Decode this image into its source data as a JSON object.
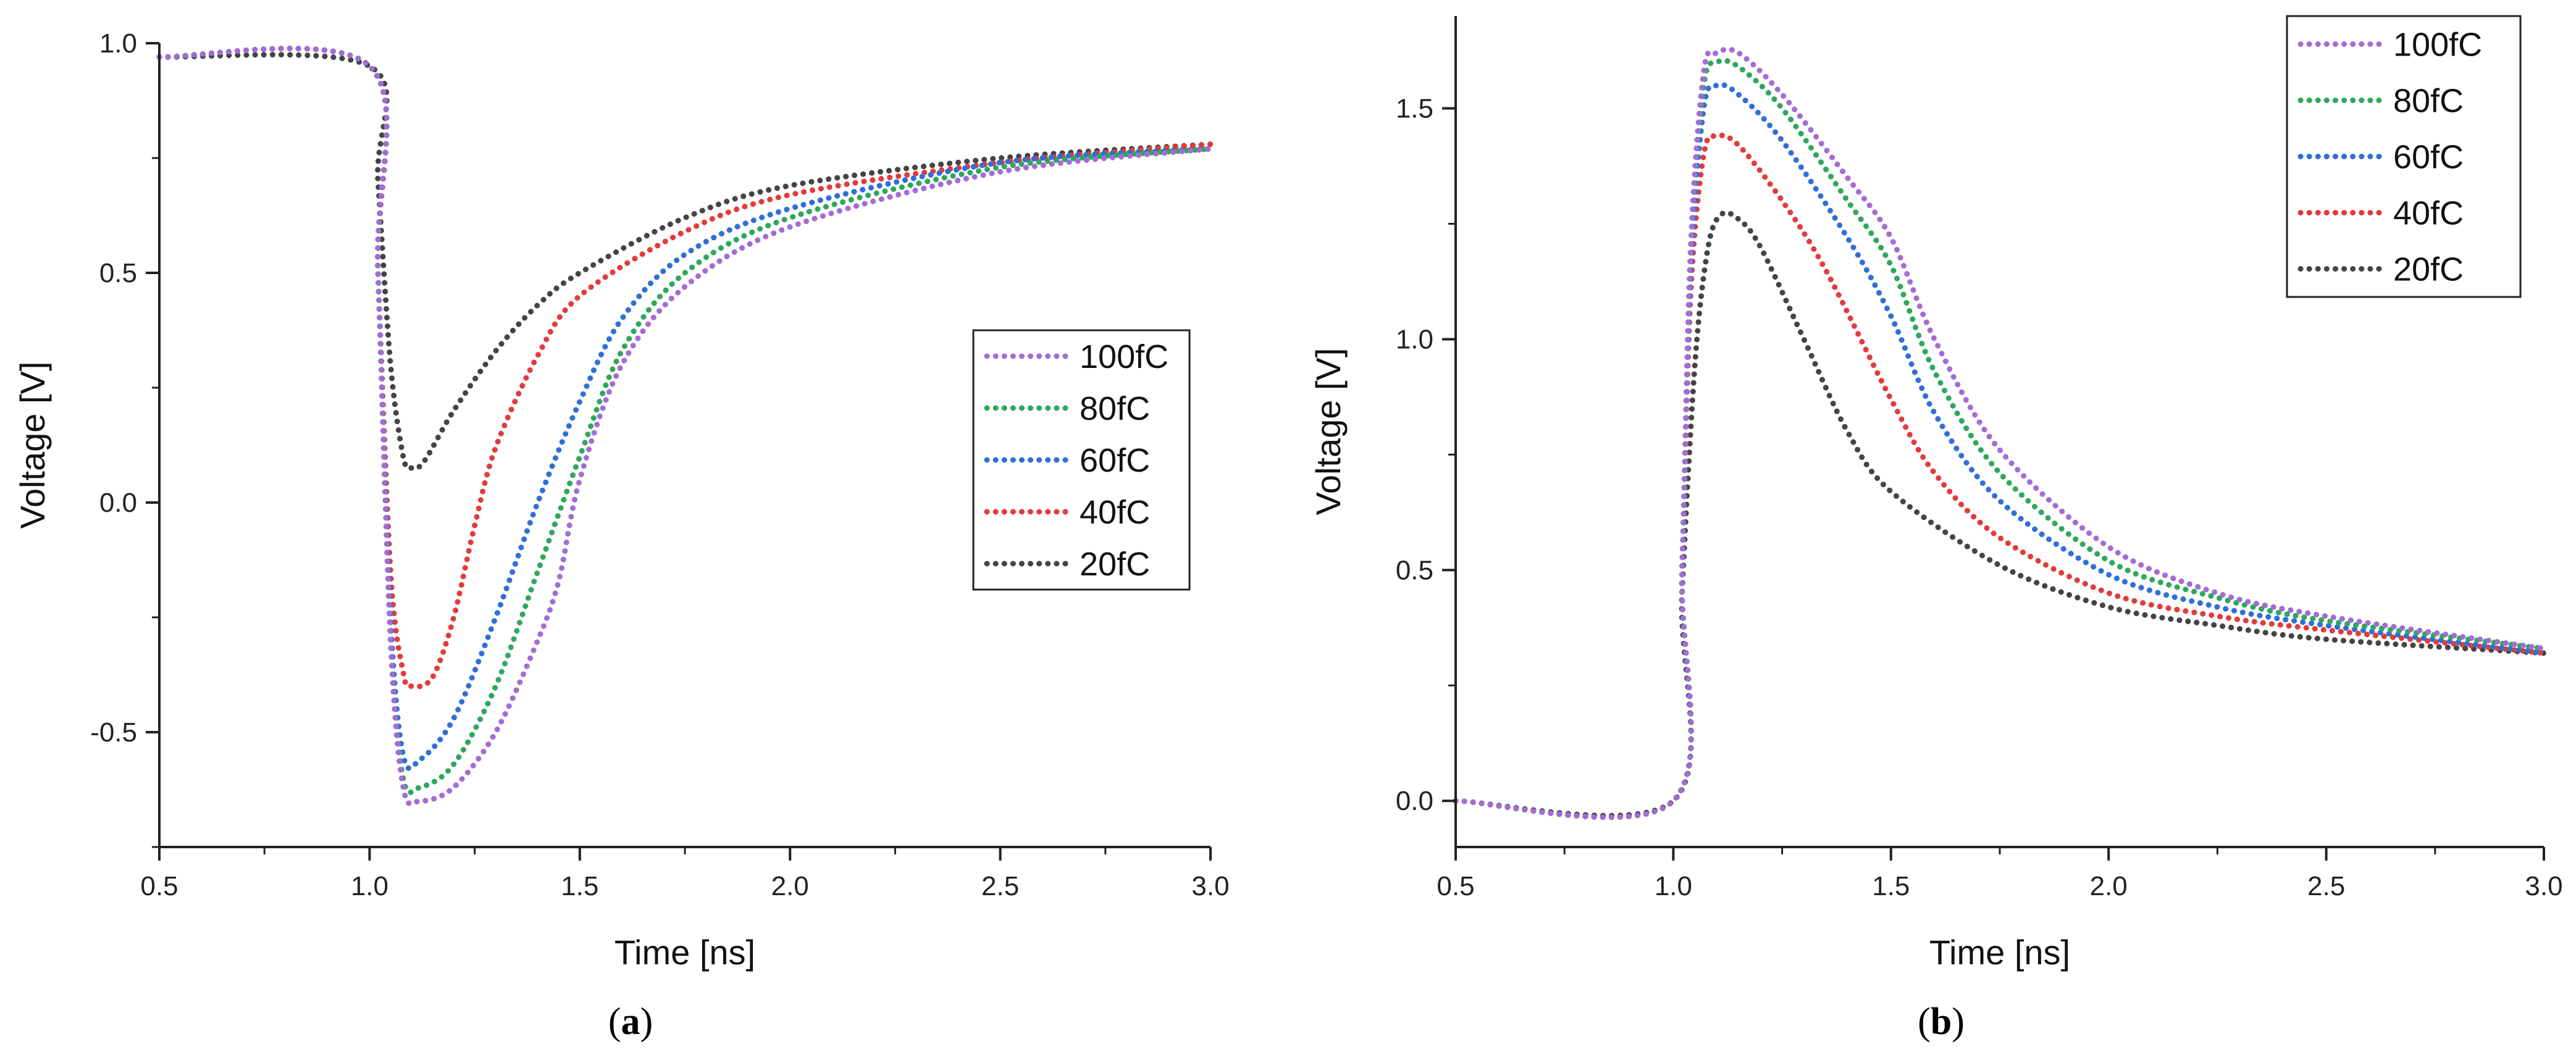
{
  "chart_data": [
    {
      "type": "line",
      "panel_label": "a",
      "xlabel": "Time [ns]",
      "ylabel": "Voltage [V]",
      "xlim": [
        0.5,
        3.0
      ],
      "ylim": [
        -0.75,
        1.0
      ],
      "xticks": [
        0.5,
        1.0,
        1.5,
        2.0,
        2.5,
        3.0
      ],
      "yticks": [
        -0.5,
        0.0,
        0.5,
        1.0
      ],
      "xtick_labels": [
        "0.5",
        "1.0",
        "1.5",
        "2.0",
        "2.5",
        "3.0"
      ],
      "ytick_labels": [
        "-0.5",
        "0.0",
        "0.5",
        "1.0"
      ],
      "grid": false,
      "legend_position": "center-right",
      "series": [
        {
          "name": "100fC",
          "color": "#a46bd6",
          "x": [
            0.5,
            1.0,
            1.02,
            1.05,
            1.08,
            1.12,
            1.2,
            1.3,
            1.4,
            1.45,
            1.5,
            1.6,
            1.75,
            2.0,
            2.5,
            3.0
          ],
          "y": [
            0.97,
            0.95,
            0.5,
            -0.3,
            -0.62,
            -0.65,
            -0.62,
            -0.5,
            -0.3,
            -0.17,
            0.05,
            0.3,
            0.47,
            0.6,
            0.72,
            0.77
          ]
        },
        {
          "name": "80fC",
          "color": "#2ea85a",
          "x": [
            0.5,
            1.0,
            1.02,
            1.05,
            1.08,
            1.12,
            1.2,
            1.3,
            1.4,
            1.5,
            1.6,
            1.75,
            2.0,
            2.5,
            3.0
          ],
          "y": [
            0.97,
            0.95,
            0.5,
            -0.3,
            -0.6,
            -0.62,
            -0.57,
            -0.4,
            -0.15,
            0.1,
            0.33,
            0.5,
            0.62,
            0.73,
            0.77
          ]
        },
        {
          "name": "60fC",
          "color": "#2f6fd8",
          "x": [
            0.5,
            1.0,
            1.02,
            1.05,
            1.08,
            1.12,
            1.2,
            1.3,
            1.4,
            1.5,
            1.6,
            1.75,
            2.0,
            2.5,
            3.0
          ],
          "y": [
            0.97,
            0.95,
            0.5,
            -0.25,
            -0.55,
            -0.56,
            -0.47,
            -0.25,
            0.0,
            0.22,
            0.4,
            0.54,
            0.64,
            0.74,
            0.77
          ]
        },
        {
          "name": "40fC",
          "color": "#e23b3b",
          "x": [
            0.5,
            1.0,
            1.02,
            1.05,
            1.08,
            1.1,
            1.15,
            1.2,
            1.25,
            1.3,
            1.4,
            1.5,
            1.75,
            2.0,
            2.5,
            3.0
          ],
          "y": [
            0.97,
            0.95,
            0.5,
            -0.15,
            -0.37,
            -0.4,
            -0.38,
            -0.25,
            -0.05,
            0.12,
            0.32,
            0.45,
            0.59,
            0.67,
            0.74,
            0.78
          ]
        },
        {
          "name": "20fC",
          "color": "#444444",
          "x": [
            0.5,
            1.0,
            1.02,
            1.05,
            1.08,
            1.1,
            1.13,
            1.2,
            1.3,
            1.4,
            1.5,
            1.75,
            2.0,
            2.5,
            3.0
          ],
          "y": [
            0.97,
            0.95,
            0.7,
            0.3,
            0.1,
            0.075,
            0.09,
            0.2,
            0.33,
            0.43,
            0.5,
            0.62,
            0.69,
            0.75,
            0.78
          ]
        }
      ]
    },
    {
      "type": "line",
      "panel_label": "b",
      "xlabel": "Time [ns]",
      "ylabel": "Voltage [V]",
      "xlim": [
        0.5,
        3.0
      ],
      "ylim": [
        -0.1,
        1.7
      ],
      "xticks": [
        0.5,
        1.0,
        1.5,
        2.0,
        2.5,
        3.0
      ],
      "yticks": [
        0.0,
        0.5,
        1.0,
        1.5
      ],
      "xtick_labels": [
        "0.5",
        "1.0",
        "1.5",
        "2.0",
        "2.5",
        "3.0"
      ],
      "ytick_labels": [
        "0.0",
        "0.5",
        "1.0",
        "1.5"
      ],
      "grid": false,
      "legend_position": "top-right",
      "series": [
        {
          "name": "100fC",
          "color": "#a46bd6",
          "x": [
            0.5,
            1.0,
            1.02,
            1.04,
            1.07,
            1.1,
            1.15,
            1.25,
            1.4,
            1.5,
            1.6,
            1.75,
            2.0,
            2.25,
            2.5,
            3.0
          ],
          "y": [
            0.0,
            0.0,
            0.5,
            1.2,
            1.58,
            1.62,
            1.62,
            1.53,
            1.35,
            1.22,
            1.0,
            0.76,
            0.55,
            0.45,
            0.4,
            0.33
          ]
        },
        {
          "name": "80fC",
          "color": "#2ea85a",
          "x": [
            0.5,
            1.0,
            1.02,
            1.04,
            1.07,
            1.1,
            1.15,
            1.25,
            1.4,
            1.5,
            1.6,
            1.75,
            2.0,
            2.25,
            2.5,
            3.0
          ],
          "y": [
            0.0,
            0.0,
            0.5,
            1.2,
            1.55,
            1.6,
            1.59,
            1.5,
            1.3,
            1.16,
            0.93,
            0.71,
            0.52,
            0.44,
            0.39,
            0.33
          ]
        },
        {
          "name": "60fC",
          "color": "#2f6fd8",
          "x": [
            0.5,
            1.0,
            1.02,
            1.04,
            1.07,
            1.1,
            1.15,
            1.25,
            1.4,
            1.5,
            1.6,
            1.75,
            2.0,
            2.25,
            2.5,
            3.0
          ],
          "y": [
            0.0,
            0.0,
            0.5,
            1.15,
            1.5,
            1.55,
            1.53,
            1.43,
            1.22,
            1.05,
            0.84,
            0.65,
            0.49,
            0.42,
            0.38,
            0.32
          ]
        },
        {
          "name": "40fC",
          "color": "#e23b3b",
          "x": [
            0.5,
            1.0,
            1.02,
            1.04,
            1.07,
            1.1,
            1.15,
            1.25,
            1.35,
            1.5,
            1.6,
            1.75,
            2.0,
            2.25,
            2.5,
            3.0
          ],
          "y": [
            0.0,
            0.0,
            0.5,
            1.1,
            1.4,
            1.44,
            1.42,
            1.3,
            1.15,
            0.87,
            0.71,
            0.57,
            0.45,
            0.4,
            0.37,
            0.32
          ]
        },
        {
          "name": "20fC",
          "color": "#444444",
          "x": [
            0.5,
            1.0,
            1.02,
            1.05,
            1.08,
            1.11,
            1.15,
            1.2,
            1.3,
            1.4,
            1.5,
            1.75,
            2.0,
            2.25,
            2.5,
            3.0
          ],
          "y": [
            0.0,
            0.0,
            0.45,
            0.95,
            1.2,
            1.27,
            1.26,
            1.2,
            1.0,
            0.8,
            0.67,
            0.51,
            0.42,
            0.38,
            0.35,
            0.32
          ]
        }
      ]
    }
  ]
}
